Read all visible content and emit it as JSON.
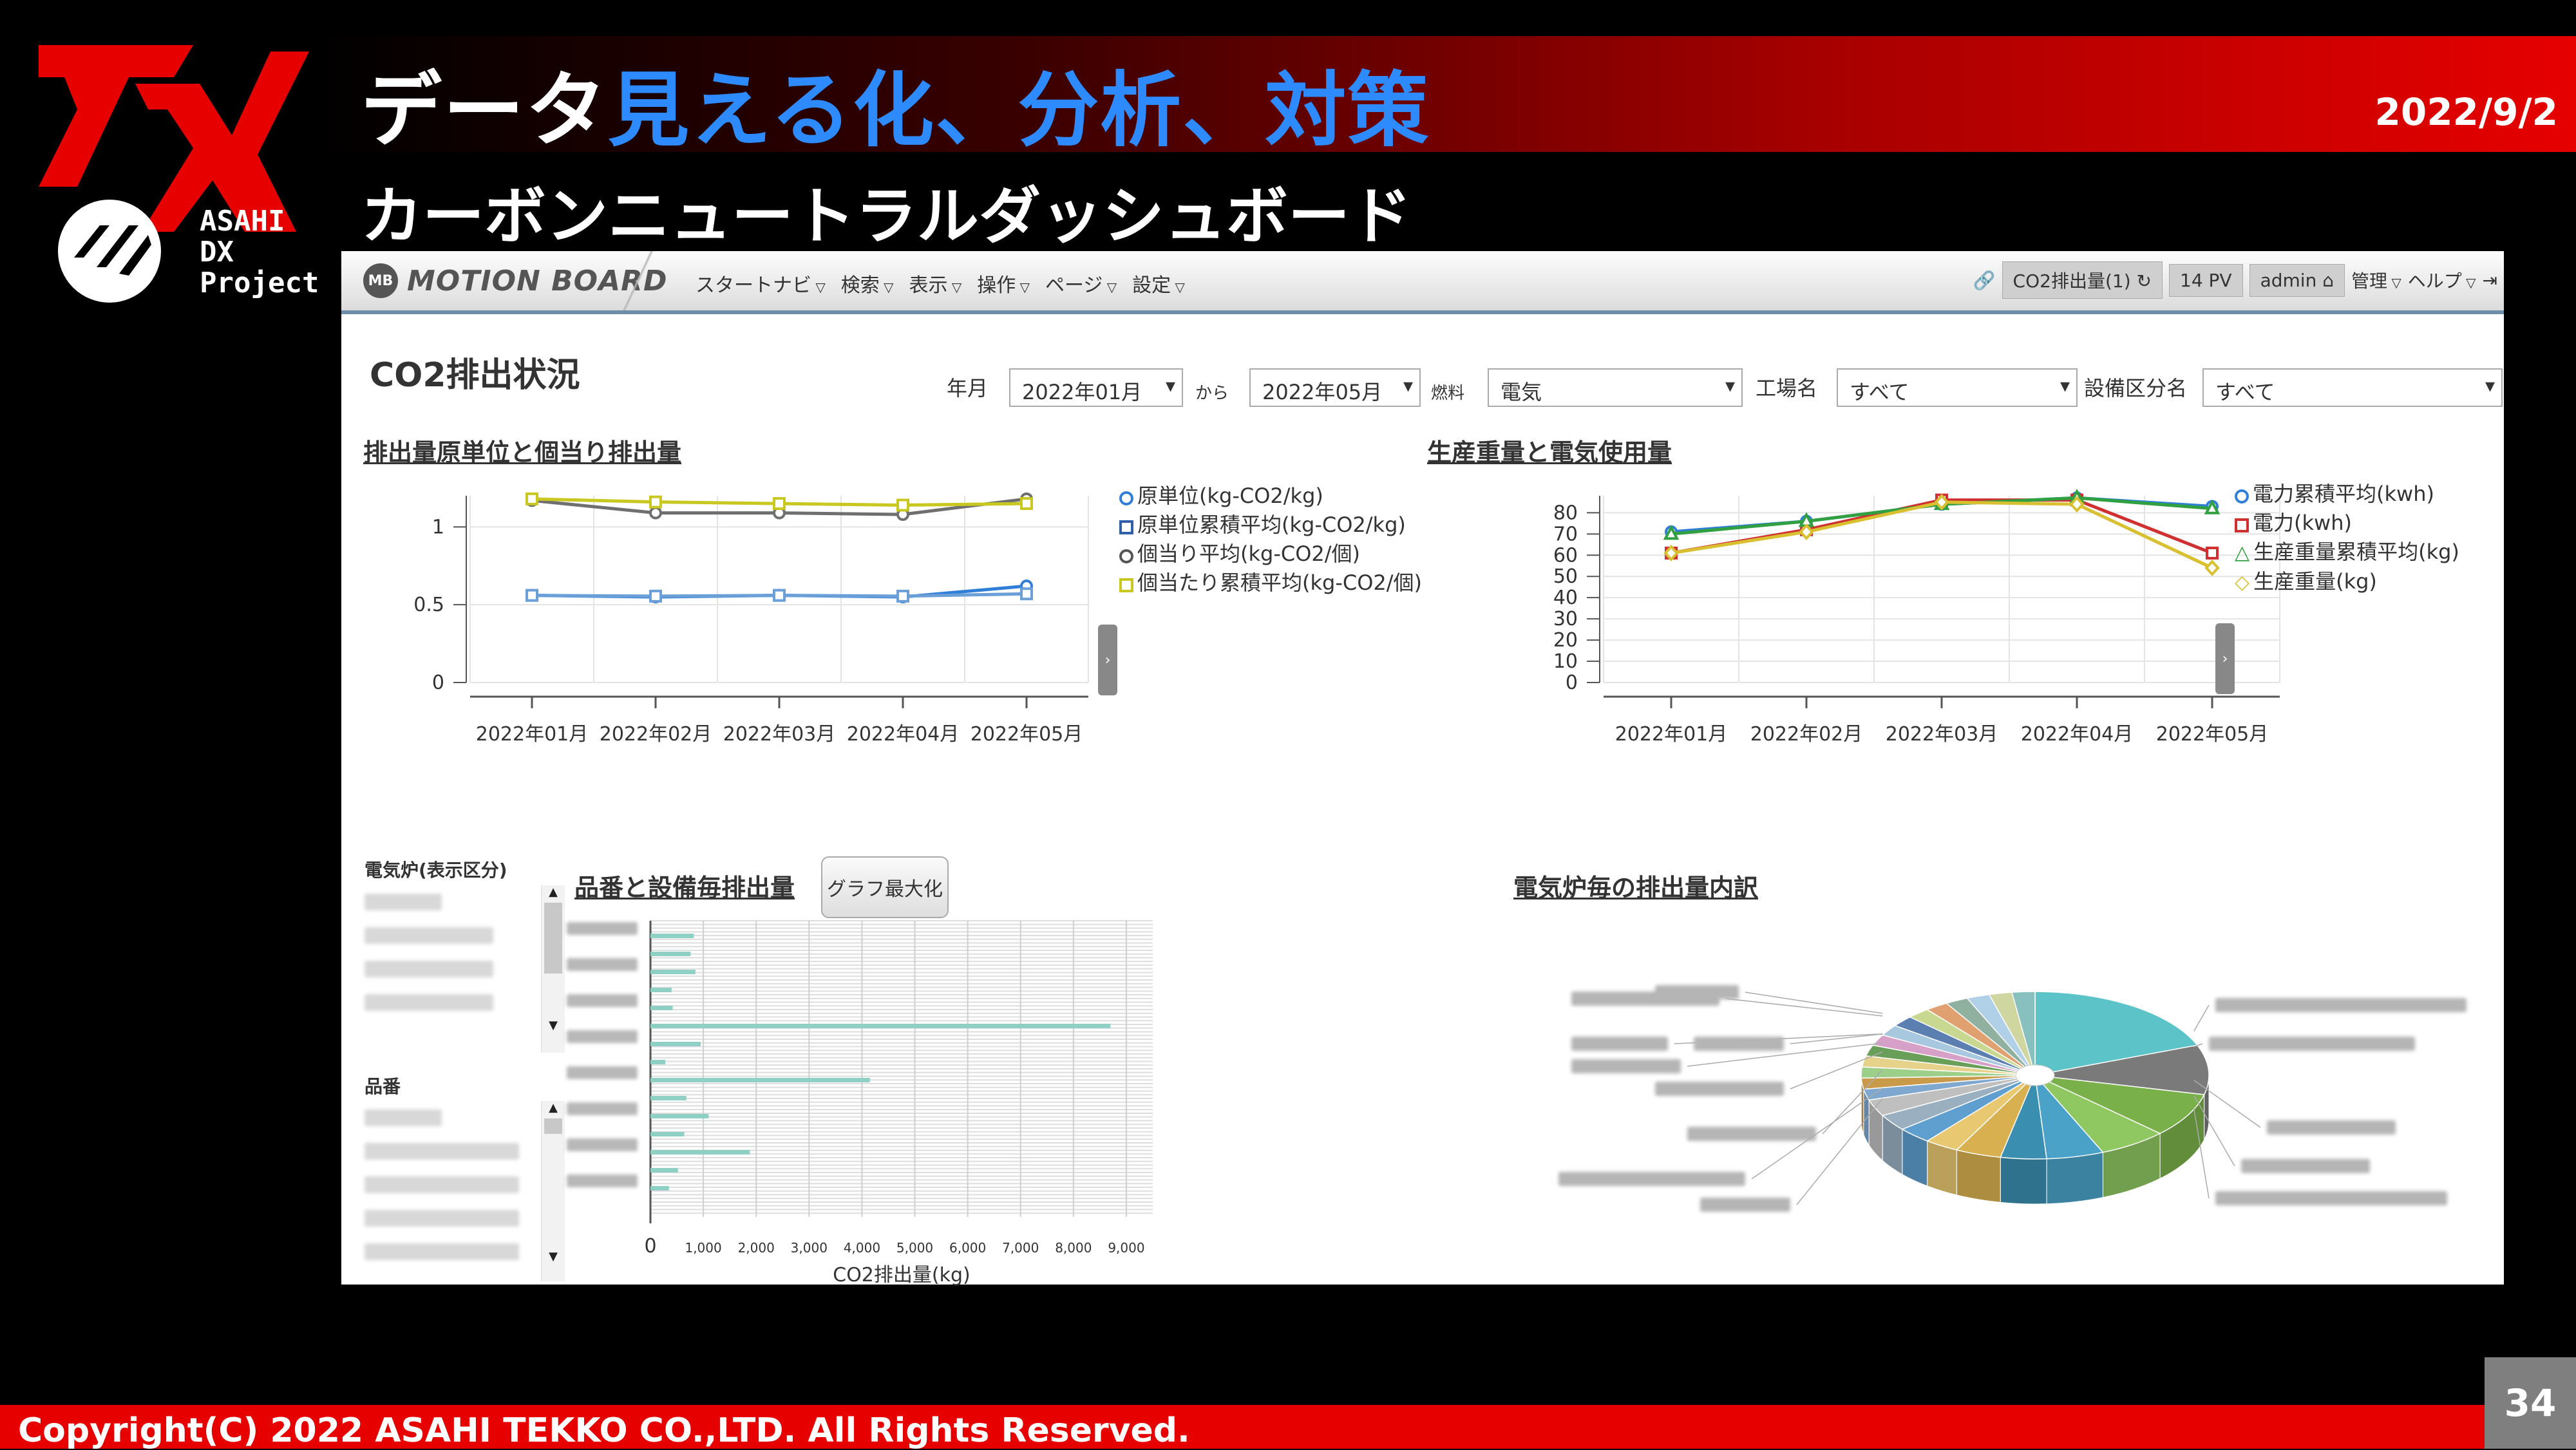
{
  "slide": {
    "title_plain": "データ",
    "title_highlight": "見える化、分析、対策",
    "subtitle": "カーボンニュートラルダッシュボード",
    "date": "2022/9/2",
    "logo_lines": [
      "ASAHI",
      "DX",
      "Project"
    ],
    "copyright": "Copyright(C) 2022 ASAHI TEKKO CO.,LTD. All Rights Reserved.",
    "page_number": "34"
  },
  "app": {
    "brand": "MOTION BOARD",
    "brand_badge": "MB",
    "menu": [
      "スタートナビ",
      "検索",
      "表示",
      "操作",
      "ページ",
      "設定"
    ],
    "right_tools": {
      "board": "CO2排出量(1)",
      "pv": "14 PV",
      "user": "admin",
      "manage": "管理",
      "help": "ヘルプ"
    },
    "dashboard_title": "CO2排出状況",
    "filters": {
      "year_month_label": "年月",
      "from_value": "2022年01月",
      "range_label": "から",
      "to_value": "2022年05月",
      "fuel_label": "燃料",
      "fuel_value": "電気",
      "factory_label": "工場名",
      "factory_value": "すべて",
      "equip_label": "設備区分名",
      "equip_value": "すべて"
    },
    "sections": {
      "left_chart_title": "排出量原単位と個当り排出量",
      "right_chart_title": "生産重量と電気使用量",
      "bar_chart_title": "品番と設備毎排出量",
      "pie_chart_title": "電気炉毎の排出量内訳",
      "max_button": "グラフ最大化",
      "side_furnace_label": "電気炉(表示区分)",
      "side_part_label": "品番"
    },
    "colors": {
      "accent_blue": "#2e8bff",
      "band_red": "#e60000"
    }
  },
  "chart_data": [
    {
      "type": "line",
      "title": "排出量原単位と個当り排出量",
      "categories": [
        "2022年01月",
        "2022年02月",
        "2022年03月",
        "2022年04月",
        "2022年05月"
      ],
      "y_ticks": [
        "0",
        "0.5",
        "1"
      ],
      "ylim": [
        0,
        1.2
      ],
      "series": [
        {
          "name": "原単位(kg-CO2/kg)",
          "color": "#2f7fd8",
          "marker": "circle",
          "values": [
            0.56,
            0.55,
            0.56,
            0.55,
            0.62
          ]
        },
        {
          "name": "原単位累積平均(kg-CO2/kg)",
          "color": "#6a9fd8",
          "marker": "square",
          "values": [
            0.56,
            0.555,
            0.56,
            0.555,
            0.57
          ]
        },
        {
          "name": "個当り平均(kg-CO2/個)",
          "color": "#6f6f6f",
          "marker": "circle",
          "values": [
            1.17,
            1.09,
            1.09,
            1.08,
            1.18
          ]
        },
        {
          "name": "個当たり累積平均(kg-CO2/個)",
          "color": "#c8c820",
          "marker": "square",
          "values": [
            1.18,
            1.16,
            1.15,
            1.14,
            1.15
          ]
        }
      ],
      "legend": "right"
    },
    {
      "type": "line",
      "title": "生産重量と電気使用量",
      "categories": [
        "2022年01月",
        "2022年02月",
        "2022年03月",
        "2022年04月",
        "2022年05月"
      ],
      "y_ticks": [
        "0",
        "10",
        "20",
        "30",
        "40",
        "50",
        "60",
        "70",
        "80"
      ],
      "ylim": [
        0,
        88
      ],
      "series": [
        {
          "name": "電力累積平均(kwh)",
          "color": "#2f7fd8",
          "marker": "circle",
          "values": [
            71,
            76,
            84,
            87,
            83
          ]
        },
        {
          "name": "電力(kwh)",
          "color": "#d03030",
          "marker": "square",
          "values": [
            61,
            72,
            86,
            86,
            61
          ]
        },
        {
          "name": "生産重量累積平均(kg)",
          "color": "#30a040",
          "marker": "triangle",
          "values": [
            70,
            76,
            84,
            87,
            82
          ]
        },
        {
          "name": "生産重量(kg)",
          "color": "#d8c030",
          "marker": "diamond",
          "values": [
            61,
            71,
            85,
            84,
            54
          ]
        }
      ],
      "legend": "right"
    },
    {
      "type": "bar",
      "orientation": "horizontal",
      "title": "品番と設備毎排出量",
      "xlabel": "CO2排出量(kg)",
      "x_ticks": [
        "0",
        "1,000",
        "2,000",
        "3,000",
        "4,000",
        "5,000",
        "6,000",
        "7,000",
        "8,000",
        "9,000"
      ],
      "xlim": [
        0,
        9500
      ],
      "values": [
        820,
        760,
        850,
        400,
        420,
        8700,
        950,
        280,
        4150,
        680,
        1100,
        640,
        1880,
        520,
        350
      ]
    },
    {
      "type": "pie",
      "title": "電気炉毎の排出量内訳",
      "values": [
        18,
        9,
        8,
        6,
        5,
        4,
        4,
        3,
        3,
        3,
        3,
        2,
        2,
        2,
        2,
        2,
        2,
        2,
        2,
        2,
        2,
        2,
        2,
        2,
        2
      ],
      "colors": [
        "#5cc3c8",
        "#7a7a7a",
        "#7ab04a",
        "#8fc760",
        "#4aa2c8",
        "#3a8fb0",
        "#d8b050",
        "#e8c870",
        "#5f9fd0",
        "#9ab0c0",
        "#bfbfbf",
        "#7fa8d0",
        "#c89a4a",
        "#9ccf8a",
        "#e6d28a",
        "#6a9f5a",
        "#d6a0c8",
        "#a8c8e0",
        "#5a7fb0",
        "#c8d890",
        "#e0a070",
        "#90b0a0",
        "#b0d0e8",
        "#cfd6a0",
        "#88c0c0"
      ]
    }
  ]
}
